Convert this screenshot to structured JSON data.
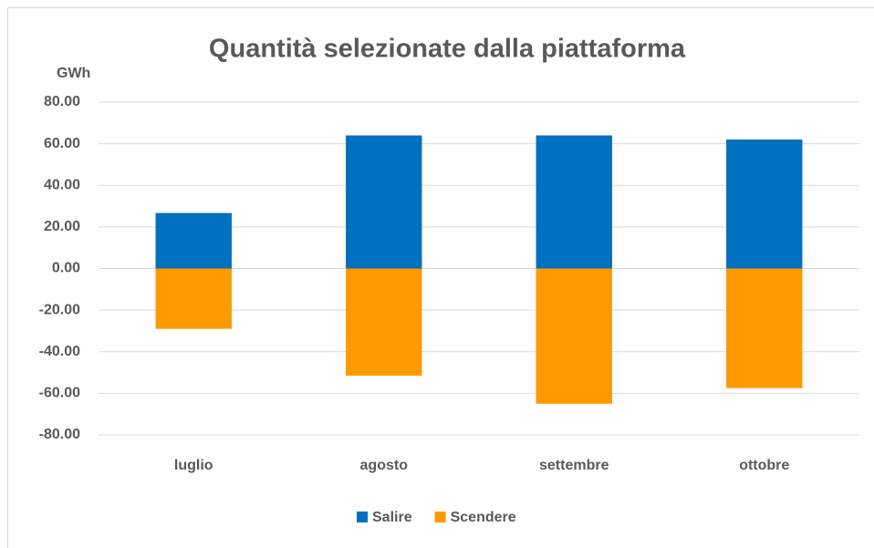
{
  "chart_data": {
    "type": "bar",
    "stacked": true,
    "title": "Quantità selezionate dalla piattaforma",
    "y_label": "GWh",
    "categories": [
      "luglio",
      "agosto",
      "settembre",
      "ottobre"
    ],
    "series": [
      {
        "name": "Salire",
        "color": "#0070c0",
        "values": [
          26.7,
          64,
          64,
          62
        ]
      },
      {
        "name": "Scendere",
        "color": "#ff9900",
        "values": [
          -29,
          -51.5,
          -65,
          -57.5
        ]
      }
    ],
    "ylim": [
      -80,
      80
    ],
    "yticks": [
      {
        "value": -80,
        "label": "-80.00"
      },
      {
        "value": -60,
        "label": "-60.00"
      },
      {
        "value": -40,
        "label": "-40.00"
      },
      {
        "value": -20,
        "label": "-20.00"
      },
      {
        "value": 0,
        "label": "0.00"
      },
      {
        "value": 20,
        "label": "20.00"
      },
      {
        "value": 40,
        "label": "40.00"
      },
      {
        "value": 60,
        "label": "60.00"
      },
      {
        "value": 80,
        "label": "80.00"
      }
    ],
    "grid": true,
    "legend": "bottom"
  }
}
